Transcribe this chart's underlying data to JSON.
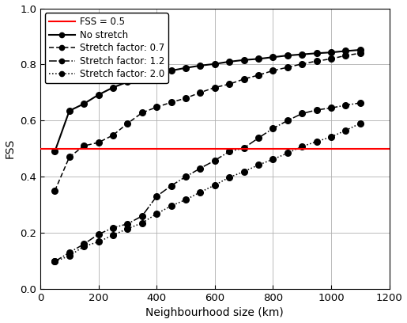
{
  "title": "",
  "xlabel": "Neighbourhood size (km)",
  "ylabel": "FSS",
  "xlim": [
    0,
    1200
  ],
  "ylim": [
    0,
    1.0
  ],
  "xticks": [
    0,
    200,
    400,
    600,
    800,
    1000,
    1200
  ],
  "yticks": [
    0,
    0.2,
    0.4,
    0.6,
    0.8,
    1.0
  ],
  "fss_line": 0.5,
  "fss_label": "FSS = 0.5",
  "legend_labels": [
    "FSS = 0.5",
    "No stretch",
    "Stretch factor: 0.7",
    "Stretch factor: 1.2",
    "Stretch factor: 2.0"
  ],
  "no_stretch": {
    "x": [
      50,
      100,
      150,
      200,
      250,
      300,
      350,
      400,
      450,
      500,
      550,
      600,
      650,
      700,
      750,
      800,
      850,
      900,
      950,
      1000,
      1050,
      1100
    ],
    "y": [
      0.49,
      0.635,
      0.66,
      0.692,
      0.718,
      0.738,
      0.755,
      0.768,
      0.778,
      0.788,
      0.796,
      0.802,
      0.81,
      0.816,
      0.82,
      0.826,
      0.832,
      0.836,
      0.84,
      0.843,
      0.848,
      0.852
    ]
  },
  "stretch_07": {
    "x": [
      50,
      100,
      150,
      200,
      250,
      300,
      350,
      400,
      450,
      500,
      550,
      600,
      650,
      700,
      750,
      800,
      850,
      900,
      950,
      1000,
      1050,
      1100
    ],
    "y": [
      0.35,
      0.47,
      0.51,
      0.522,
      0.548,
      0.59,
      0.628,
      0.648,
      0.665,
      0.68,
      0.7,
      0.718,
      0.73,
      0.748,
      0.762,
      0.778,
      0.79,
      0.802,
      0.812,
      0.82,
      0.832,
      0.84
    ]
  },
  "stretch_12": {
    "x": [
      50,
      100,
      150,
      200,
      250,
      300,
      350,
      400,
      450,
      500,
      550,
      600,
      650,
      700,
      750,
      800,
      850,
      900,
      950,
      1000,
      1050,
      1100
    ],
    "y": [
      0.098,
      0.13,
      0.16,
      0.195,
      0.218,
      0.232,
      0.26,
      0.33,
      0.368,
      0.4,
      0.43,
      0.458,
      0.49,
      0.502,
      0.538,
      0.572,
      0.6,
      0.625,
      0.638,
      0.645,
      0.655,
      0.663
    ]
  },
  "stretch_20": {
    "x": [
      50,
      100,
      150,
      200,
      250,
      300,
      350,
      400,
      450,
      500,
      550,
      600,
      650,
      700,
      750,
      800,
      850,
      900,
      950,
      1000,
      1050,
      1100
    ],
    "y": [
      0.098,
      0.118,
      0.152,
      0.168,
      0.192,
      0.215,
      0.235,
      0.268,
      0.296,
      0.318,
      0.345,
      0.37,
      0.398,
      0.418,
      0.442,
      0.462,
      0.484,
      0.508,
      0.525,
      0.542,
      0.565,
      0.59
    ]
  },
  "line_color": "#000000",
  "fss_color": "#ff0000",
  "marker": "o",
  "markersize": 5.5,
  "grid_color": "#b0b0b0",
  "figsize": [
    5.15,
    4.08
  ],
  "dpi": 100
}
